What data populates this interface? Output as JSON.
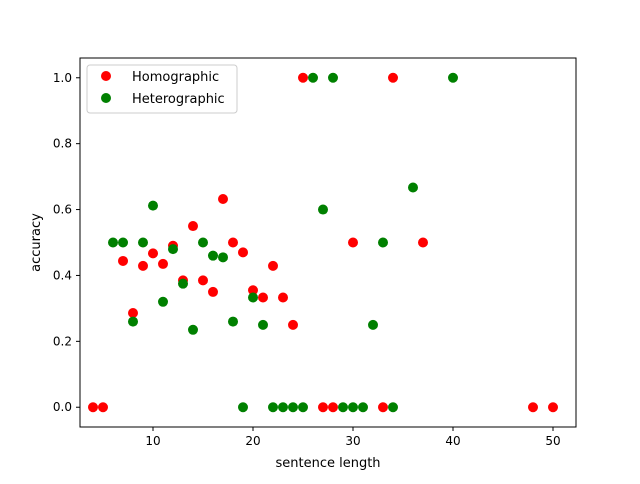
{
  "chart_data": {
    "type": "scatter",
    "xlabel": "sentence length",
    "ylabel": "accuracy",
    "xlim": [
      2.7,
      52.3
    ],
    "ylim": [
      -0.06,
      1.06
    ],
    "xticks": [
      10,
      20,
      30,
      40,
      50
    ],
    "yticks": [
      0.0,
      0.2,
      0.4,
      0.6,
      0.8,
      1.0
    ],
    "xtick_labels": [
      "10",
      "20",
      "30",
      "40",
      "50"
    ],
    "ytick_labels": [
      "0.0",
      "0.2",
      "0.4",
      "0.6",
      "0.8",
      "1.0"
    ],
    "grid": false,
    "legend_position": "upper-left",
    "series": [
      {
        "name": "Homographic",
        "color": "#ff0000",
        "points": [
          [
            4,
            0.0
          ],
          [
            5,
            0.0
          ],
          [
            7,
            0.444
          ],
          [
            8,
            0.286
          ],
          [
            9,
            0.429
          ],
          [
            10,
            0.467
          ],
          [
            11,
            0.435
          ],
          [
            12,
            0.49
          ],
          [
            13,
            0.385
          ],
          [
            14,
            0.55
          ],
          [
            15,
            0.385
          ],
          [
            16,
            0.35
          ],
          [
            17,
            0.632
          ],
          [
            18,
            0.5
          ],
          [
            19,
            0.47
          ],
          [
            20,
            0.355
          ],
          [
            21,
            0.333
          ],
          [
            22,
            0.429
          ],
          [
            23,
            0.333
          ],
          [
            24,
            0.25
          ],
          [
            25,
            1.0
          ],
          [
            27,
            0.0
          ],
          [
            28,
            0.0
          ],
          [
            30,
            0.5
          ],
          [
            33,
            0.0
          ],
          [
            34,
            1.0
          ],
          [
            37,
            0.5
          ],
          [
            48,
            0.0
          ],
          [
            50,
            0.0
          ]
        ]
      },
      {
        "name": "Heterographic",
        "color": "#008000",
        "points": [
          [
            6,
            0.5
          ],
          [
            7,
            0.5
          ],
          [
            8,
            0.26
          ],
          [
            9,
            0.5
          ],
          [
            10,
            0.612
          ],
          [
            11,
            0.32
          ],
          [
            12,
            0.48
          ],
          [
            13,
            0.375
          ],
          [
            14,
            0.235
          ],
          [
            15,
            0.5
          ],
          [
            16,
            0.46
          ],
          [
            17,
            0.455
          ],
          [
            18,
            0.26
          ],
          [
            19,
            0.0
          ],
          [
            20,
            0.333
          ],
          [
            21,
            0.25
          ],
          [
            22,
            0.0
          ],
          [
            23,
            0.0
          ],
          [
            24,
            0.0
          ],
          [
            25,
            0.0
          ],
          [
            26,
            1.0
          ],
          [
            27,
            0.6
          ],
          [
            28,
            1.0
          ],
          [
            29,
            0.0
          ],
          [
            30,
            0.0
          ],
          [
            31,
            0.0
          ],
          [
            32,
            0.25
          ],
          [
            33,
            0.5
          ],
          [
            34,
            0.0
          ],
          [
            36,
            0.667
          ],
          [
            40,
            1.0
          ]
        ]
      }
    ]
  }
}
